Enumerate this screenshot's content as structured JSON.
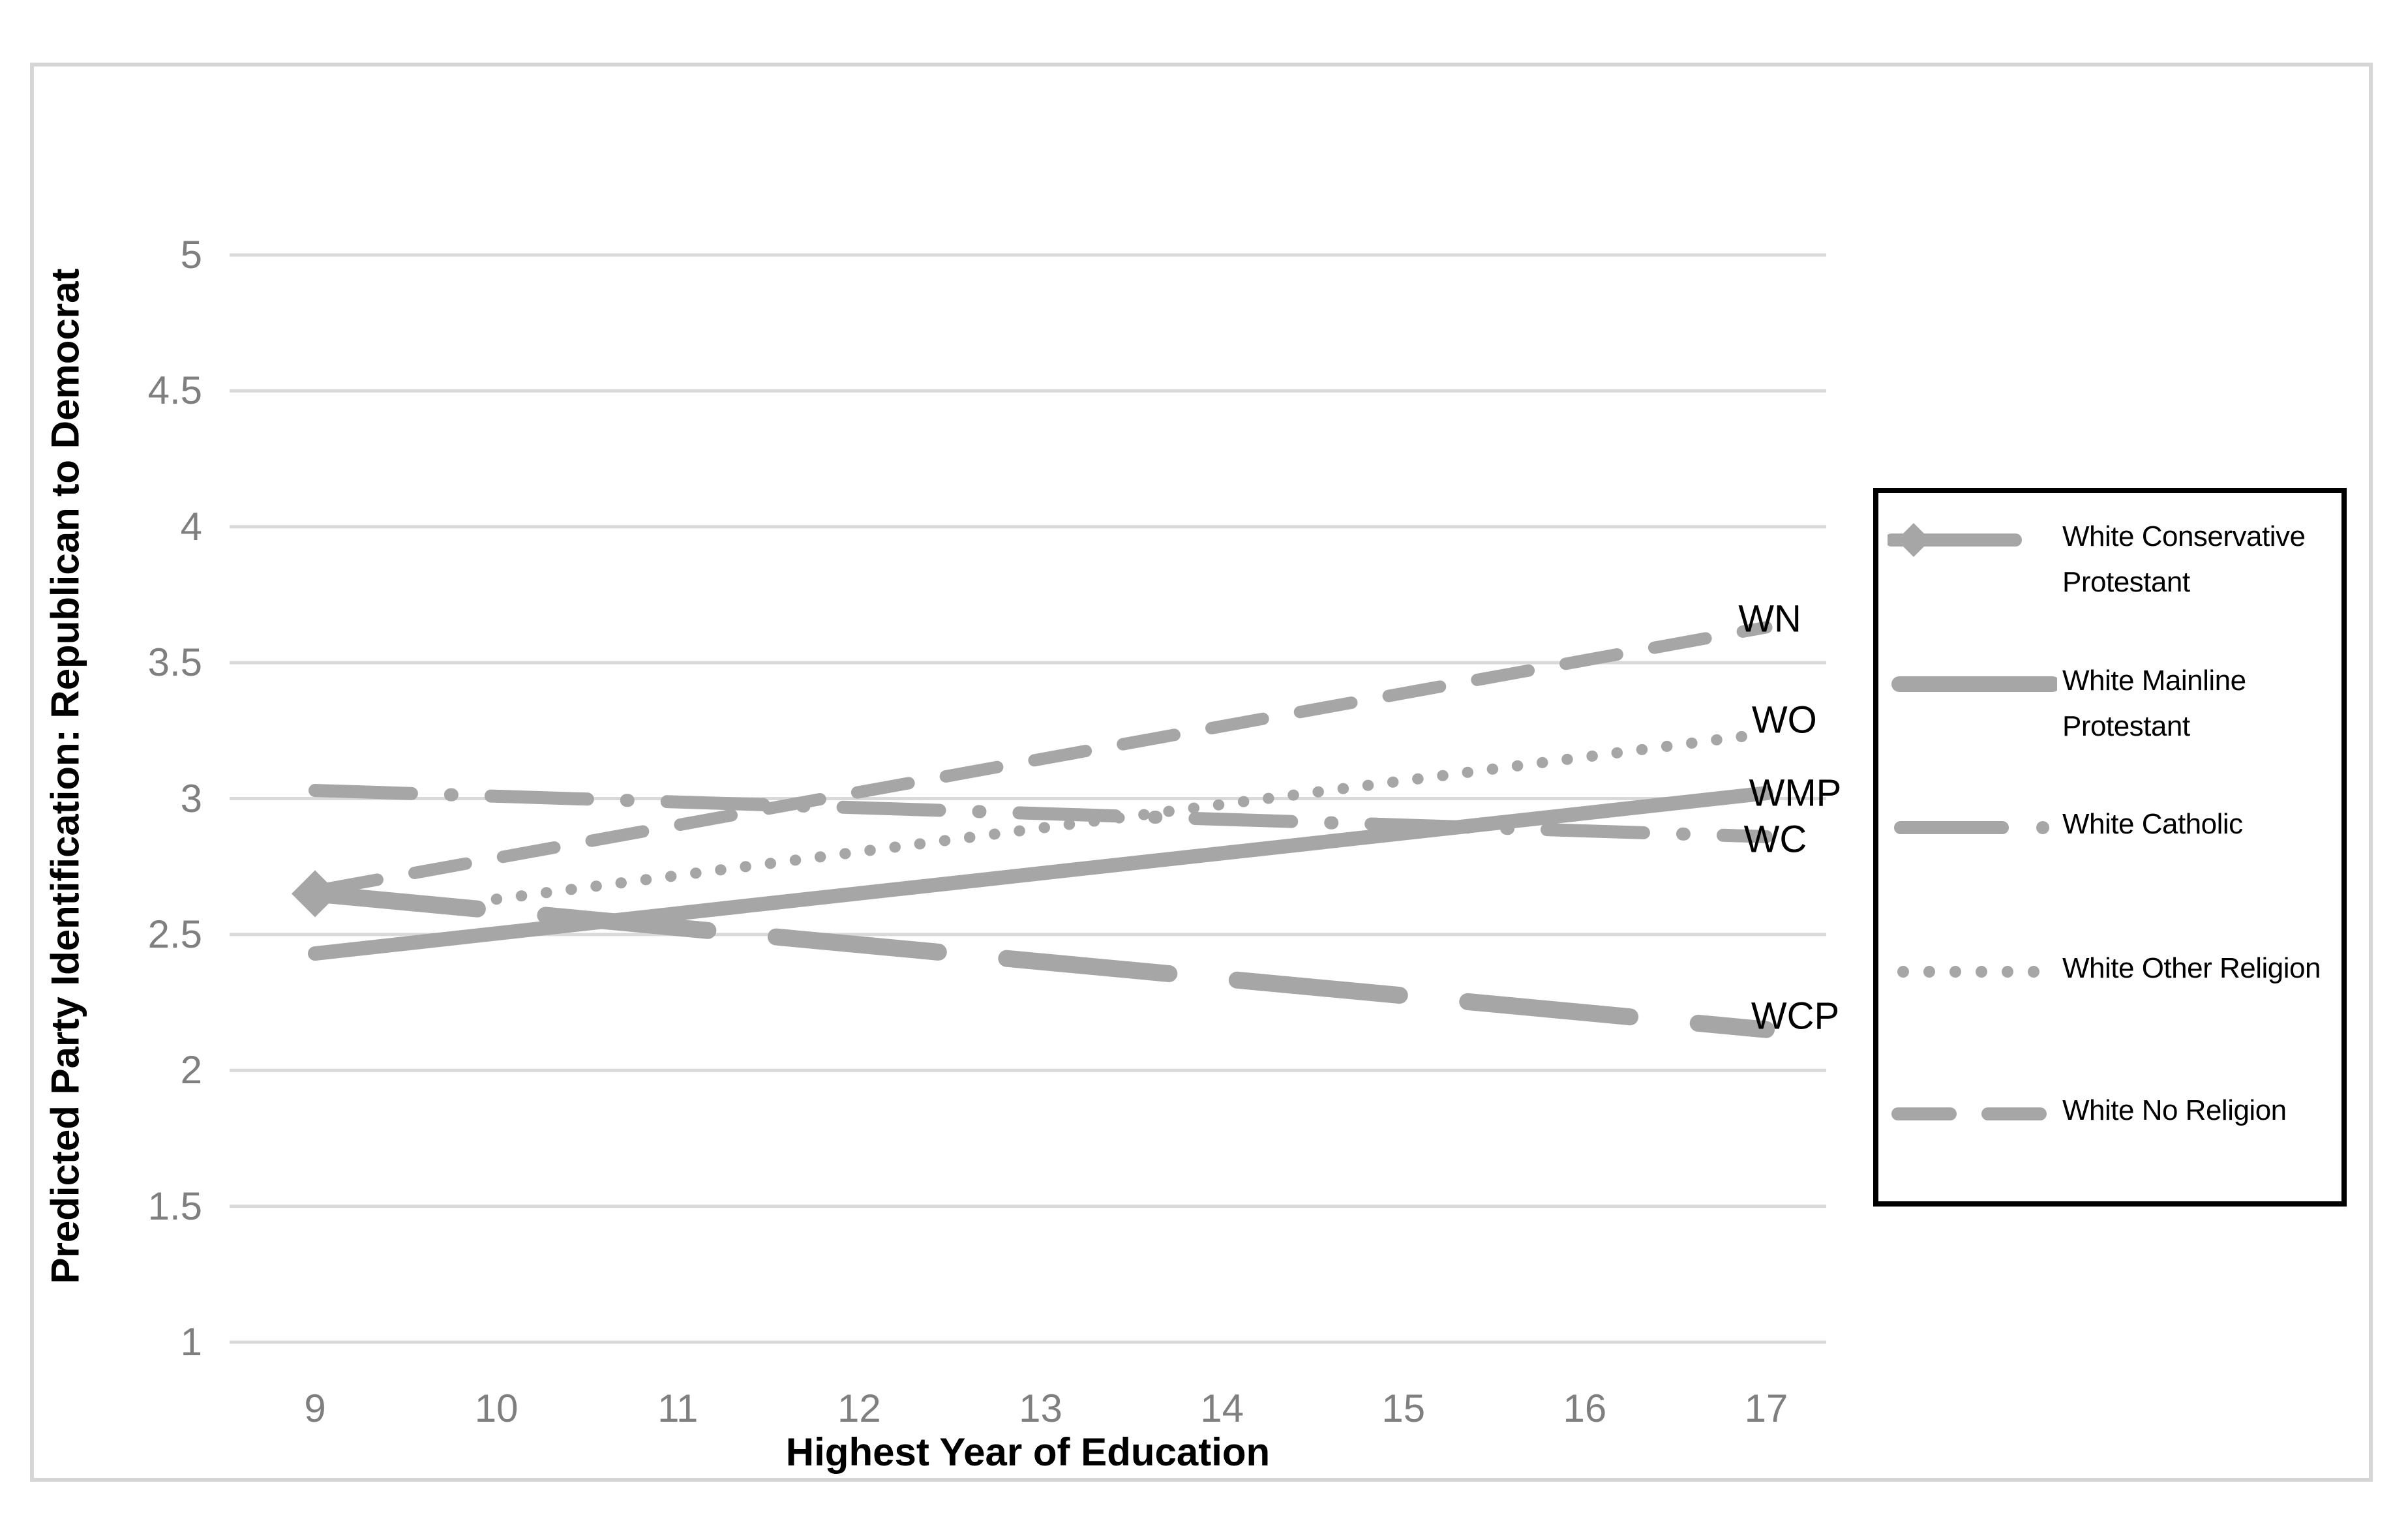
{
  "chart_data": {
    "type": "line",
    "xlabel": "Highest Year of Education",
    "ylabel": "Predicted Party Identification: Republican to Democrat",
    "x_ticks": [
      9,
      10,
      11,
      12,
      13,
      14,
      15,
      16,
      17
    ],
    "y_ticks": [
      5,
      4.5,
      4,
      3.5,
      3,
      2.5,
      2,
      1.5,
      1
    ],
    "xlim": [
      9,
      17
    ],
    "ylim": [
      1,
      5
    ],
    "grid": "horizontal-only",
    "legend_position": "right-outside",
    "series": [
      {
        "name": "White No Religion",
        "short_label": "WN",
        "line_style": "dashed",
        "marker": "none",
        "points": [
          [
            9,
            2.66
          ],
          [
            17,
            3.63
          ]
        ],
        "label_at": [
          17.02,
          3.66
        ]
      },
      {
        "name": "White Other Religion",
        "short_label": "WO",
        "line_style": "dotted",
        "marker": "none",
        "points": [
          [
            10,
            2.63
          ],
          [
            17,
            3.24
          ]
        ],
        "label_at": [
          17.1,
          3.29
        ]
      },
      {
        "name": "White Catholic",
        "short_label": "WC",
        "line_style": "dash-dot",
        "marker": "none",
        "points": [
          [
            9,
            3.03
          ],
          [
            17,
            2.86
          ]
        ],
        "label_at": [
          17.05,
          2.85
        ]
      },
      {
        "name": "White Mainline Protestant",
        "short_label": "WMP",
        "line_style": "solid",
        "marker": "none",
        "points": [
          [
            9,
            2.43
          ],
          [
            17,
            3.02
          ]
        ],
        "label_at": [
          17.16,
          3.02
        ]
      },
      {
        "name": "White Conservative Protestant",
        "short_label": "WCP",
        "line_style": "long-dash",
        "marker": "diamond-at-start",
        "points": [
          [
            9,
            2.65
          ],
          [
            17,
            2.15
          ]
        ],
        "label_at": [
          17.16,
          2.2
        ]
      }
    ],
    "line_color": "#a6a6a6"
  },
  "legend": {
    "entries": [
      {
        "label": "White Conservative Protestant",
        "style": "long-dash-diamond"
      },
      {
        "label": "White Mainline Protestant",
        "style": "solid"
      },
      {
        "label": "White Catholic",
        "style": "dash-dot"
      },
      {
        "label": "White Other Religion",
        "style": "dotted"
      },
      {
        "label": "White No Religion",
        "style": "dashed"
      }
    ]
  },
  "colors": {
    "series": "#a6a6a6",
    "gridline": "#d9d9d9",
    "tick_label": "#7f7f7f",
    "text": "#000000",
    "figure_border": "#d6d6d6",
    "legend_border": "#000000",
    "background": "#ffffff"
  }
}
